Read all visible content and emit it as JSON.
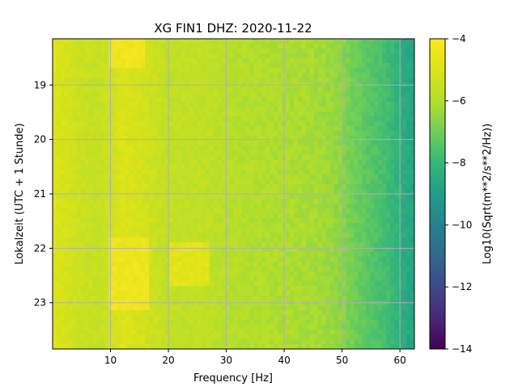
{
  "chart_data": {
    "type": "heatmap",
    "title": "XG FIN1  DHZ: 2020-11-22",
    "xlabel": "Frequency [Hz]",
    "ylabel": "Lokalzeit (UTC + 1 Stunde)",
    "xlim": [
      0,
      62.5
    ],
    "ylim": [
      18.15,
      23.85
    ],
    "xticks": [
      10,
      20,
      30,
      40,
      50,
      60
    ],
    "yticks": [
      19,
      20,
      21,
      22,
      23
    ],
    "grid": true,
    "colormap": "viridis",
    "colorbar": {
      "label": "Log10(Sqrt(m**2/s**2/Hz))",
      "range": [
        -14,
        -4
      ],
      "ticks": [
        -14,
        -12,
        -10,
        -8,
        -6,
        -4
      ]
    },
    "value_profile": {
      "frequency_hz": [
        0,
        2,
        5,
        8,
        10,
        12,
        15,
        18,
        20,
        25,
        30,
        35,
        40,
        45,
        48,
        50,
        52,
        55,
        58,
        60,
        62.5
      ],
      "log10_amplitude": [
        -5.0,
        -5.2,
        -5.5,
        -5.6,
        -5.4,
        -5.0,
        -5.2,
        -5.5,
        -5.7,
        -5.7,
        -5.9,
        -6.0,
        -6.1,
        -6.2,
        -6.35,
        -6.6,
        -7.0,
        -7.4,
        -7.8,
        -8.3,
        -8.8
      ]
    },
    "bright_bands": [
      {
        "time_range": [
          18.15,
          18.7
        ],
        "frequency_range": [
          10,
          16
        ],
        "log10_amplitude": -4.6
      },
      {
        "time_range": [
          21.8,
          23.1
        ],
        "frequency_range": [
          10,
          17
        ],
        "log10_amplitude": -4.6
      },
      {
        "time_range": [
          21.9,
          22.7
        ],
        "frequency_range": [
          20,
          27
        ],
        "log10_amplitude": -5.0
      }
    ]
  }
}
